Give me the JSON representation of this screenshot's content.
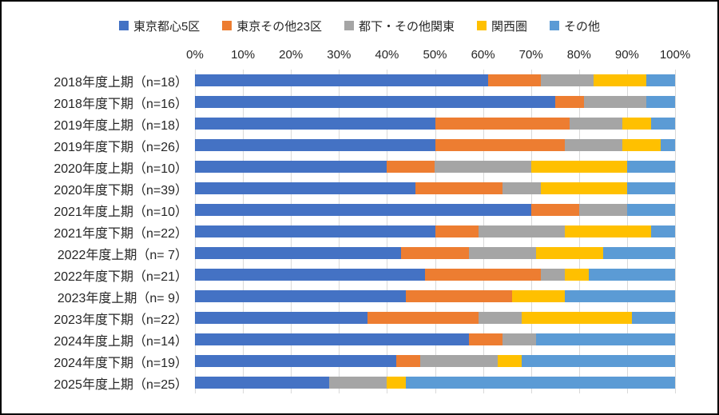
{
  "legend": [
    {
      "label": "東京都心5区",
      "color": "#4472C4"
    },
    {
      "label": "東京その他23区",
      "color": "#ED7D31"
    },
    {
      "label": "都下・その他関東",
      "color": "#A5A5A5"
    },
    {
      "label": "関西圏",
      "color": "#FFC000"
    },
    {
      "label": "その他",
      "color": "#5B9BD5"
    }
  ],
  "chart_data": {
    "type": "bar",
    "orientation": "horizontal",
    "stacked": true,
    "unit": "percent",
    "title": "",
    "xlabel": "",
    "ylabel": "",
    "xlim": [
      0,
      100
    ],
    "grid": true,
    "legend_position": "top",
    "x_ticks": [
      "0%",
      "10%",
      "20%",
      "30%",
      "40%",
      "50%",
      "60%",
      "70%",
      "80%",
      "90%",
      "100%"
    ],
    "categories": [
      "2018年度上期（n=18）",
      "2018年度下期（n=16）",
      "2019年度上期（n=18）",
      "2019年度下期（n=26）",
      "2020年度上期（n=10）",
      "2020年度下期（n=39）",
      "2021年度上期（n=10）",
      "2021年度下期（n=22）",
      "2022年度上期（n= 7）",
      "2022年度下期（n=21）",
      "2023年度上期（n= 9）",
      "2023年度下期（n=22）",
      "2024年度上期（n=14）",
      "2024年度下期（n=19）",
      "2025年度上期（n=25）"
    ],
    "series": [
      {
        "name": "東京都心5区",
        "color": "#4472C4",
        "values": [
          61,
          75,
          50,
          50,
          40,
          46,
          70,
          50,
          43,
          48,
          44,
          36,
          57,
          42,
          28
        ]
      },
      {
        "name": "東京その他23区",
        "color": "#ED7D31",
        "values": [
          11,
          6,
          28,
          27,
          10,
          18,
          10,
          9,
          14,
          24,
          22,
          23,
          7,
          5,
          0
        ]
      },
      {
        "name": "都下・その他関東",
        "color": "#A5A5A5",
        "values": [
          11,
          13,
          11,
          12,
          20,
          8,
          10,
          18,
          14,
          5,
          0,
          9,
          7,
          16,
          12
        ]
      },
      {
        "name": "関西圏",
        "color": "#FFC000",
        "values": [
          11,
          0,
          6,
          8,
          20,
          18,
          0,
          18,
          14,
          5,
          11,
          23,
          0,
          5,
          4
        ]
      },
      {
        "name": "その他",
        "color": "#5B9BD5",
        "values": [
          6,
          6,
          5,
          3,
          10,
          10,
          10,
          5,
          15,
          18,
          23,
          9,
          29,
          32,
          56
        ]
      }
    ]
  }
}
